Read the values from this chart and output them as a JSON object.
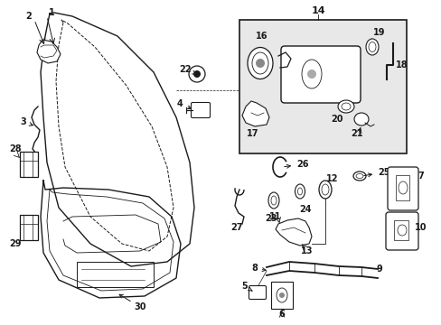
{
  "background": "#ffffff",
  "box_bg": "#e0e0e0",
  "line_color": "#1a1a1a",
  "text_color": "#1a1a1a",
  "figsize": [
    4.89,
    3.6
  ],
  "dpi": 100,
  "xlim": [
    0,
    489
  ],
  "ylim": [
    0,
    360
  ]
}
